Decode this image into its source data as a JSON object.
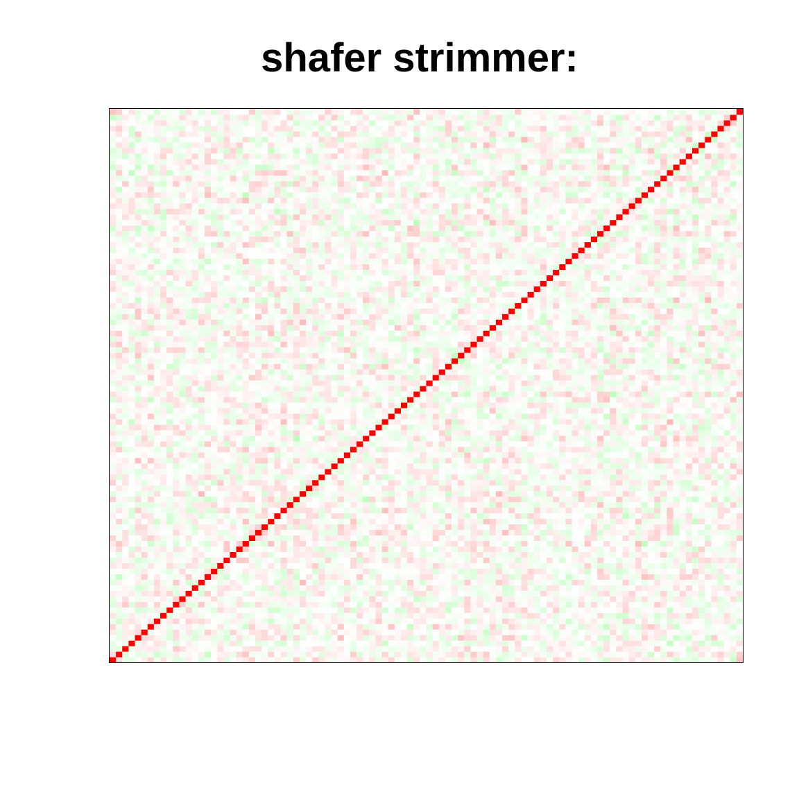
{
  "chart_data": {
    "type": "heatmap",
    "title": "shafer strimmer:",
    "xlabel": "",
    "ylabel": "",
    "n_variables": 100,
    "value_range": [
      -1,
      1
    ],
    "diagonal_value": 1,
    "off_diagonal_magnitude_max": 0.3,
    "matrix_orientation": "diagonal runs from bottom-left to top-right",
    "color_scale": {
      "negative": "#7fff7f",
      "zero": "#ffffff",
      "positive": "#ff0000"
    },
    "axes_shown": false,
    "grid": false,
    "legend": "none"
  }
}
